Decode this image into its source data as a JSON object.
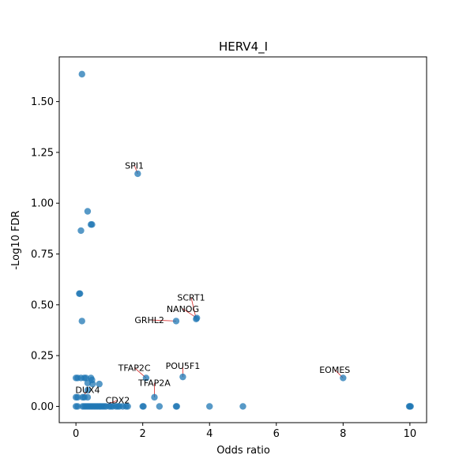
{
  "chart_data": {
    "type": "scatter",
    "title": "HERV4_I",
    "xlabel": "Odds ratio",
    "ylabel": "-Log10 FDR",
    "xlim": [
      -0.5,
      10.5
    ],
    "ylim": [
      -0.08,
      1.72
    ],
    "xticks": [
      0,
      2,
      4,
      6,
      8,
      10
    ],
    "yticks": [
      0.0,
      0.25,
      0.5,
      0.75,
      1.0,
      1.25,
      1.5
    ],
    "xtick_labels": [
      "0",
      "2",
      "4",
      "6",
      "8",
      "10"
    ],
    "ytick_labels": [
      "0.00",
      "0.25",
      "0.50",
      "0.75",
      "1.00",
      "1.25",
      "1.50"
    ],
    "grid": false,
    "point_color": "#1f77b4",
    "point_alpha": 0.75,
    "leader_color": "#d62728",
    "points": [
      [
        0.18,
        1.635
      ],
      [
        1.85,
        1.145
      ],
      [
        0.35,
        0.96
      ],
      [
        0.45,
        0.895
      ],
      [
        0.48,
        0.895
      ],
      [
        0.15,
        0.865
      ],
      [
        0.1,
        0.555
      ],
      [
        0.12,
        0.555
      ],
      [
        0.18,
        0.42
      ],
      [
        3.0,
        0.42
      ],
      [
        3.6,
        0.43
      ],
      [
        3.62,
        0.435
      ],
      [
        3.2,
        0.145
      ],
      [
        8.0,
        0.14
      ],
      [
        2.1,
        0.14
      ],
      [
        2.35,
        0.045
      ],
      [
        0.0,
        0.14
      ],
      [
        0.05,
        0.14
      ],
      [
        0.15,
        0.14
      ],
      [
        0.25,
        0.14
      ],
      [
        0.3,
        0.14
      ],
      [
        0.45,
        0.14
      ],
      [
        0.48,
        0.13
      ],
      [
        0.35,
        0.115
      ],
      [
        0.5,
        0.11
      ],
      [
        0.7,
        0.11
      ],
      [
        0.35,
        0.08
      ],
      [
        0.0,
        0.045
      ],
      [
        0.05,
        0.045
      ],
      [
        0.2,
        0.045
      ],
      [
        0.25,
        0.045
      ],
      [
        0.35,
        0.045
      ],
      [
        0.0,
        0.0
      ],
      [
        0.05,
        0.0
      ],
      [
        0.2,
        0.0
      ],
      [
        0.25,
        0.0
      ],
      [
        0.3,
        0.0
      ],
      [
        0.35,
        0.0
      ],
      [
        0.4,
        0.0
      ],
      [
        0.45,
        0.0
      ],
      [
        0.5,
        0.0
      ],
      [
        0.55,
        0.0
      ],
      [
        0.6,
        0.0
      ],
      [
        0.65,
        0.0
      ],
      [
        0.7,
        0.0
      ],
      [
        0.75,
        0.0
      ],
      [
        0.8,
        0.0
      ],
      [
        0.85,
        0.0
      ],
      [
        0.9,
        0.0
      ],
      [
        1.0,
        0.0
      ],
      [
        1.05,
        0.0
      ],
      [
        1.1,
        0.0
      ],
      [
        1.2,
        0.0
      ],
      [
        1.25,
        0.0
      ],
      [
        1.3,
        0.0
      ],
      [
        1.4,
        0.0
      ],
      [
        1.5,
        0.0
      ],
      [
        1.55,
        0.0
      ],
      [
        2.0,
        0.0
      ],
      [
        2.02,
        0.0
      ],
      [
        2.5,
        0.0
      ],
      [
        3.0,
        0.0
      ],
      [
        3.02,
        0.0
      ],
      [
        4.0,
        0.0
      ],
      [
        5.0,
        0.0
      ],
      [
        10.0,
        0.0
      ],
      [
        9.98,
        0.0
      ],
      [
        10.02,
        0.0
      ]
    ],
    "annotations": [
      {
        "text": "SPI1",
        "x": 1.85,
        "y": 1.145,
        "tx": 1.75,
        "ty": 1.17
      },
      {
        "text": "SCRT1",
        "x": 3.6,
        "y": 0.43,
        "tx": 3.45,
        "ty": 0.52
      },
      {
        "text": "NANOG",
        "x": 3.62,
        "y": 0.435,
        "tx": 3.2,
        "ty": 0.465
      },
      {
        "text": "GRHL2",
        "x": 3.0,
        "y": 0.42,
        "tx": 2.2,
        "ty": 0.41
      },
      {
        "text": "TFAP2C",
        "x": 2.1,
        "y": 0.14,
        "tx": 1.75,
        "ty": 0.175
      },
      {
        "text": "POU5F1",
        "x": 3.2,
        "y": 0.145,
        "tx": 3.2,
        "ty": 0.185
      },
      {
        "text": "EOMES",
        "x": 8.0,
        "y": 0.14,
        "tx": 7.75,
        "ty": 0.165
      },
      {
        "text": "TFAP2A",
        "x": 2.35,
        "y": 0.045,
        "tx": 2.35,
        "ty": 0.1
      },
      {
        "text": "DUX4",
        "x": 0.2,
        "y": 0.045,
        "tx": 0.35,
        "ty": 0.065
      },
      {
        "text": "CDX2",
        "x": 0.8,
        "y": 0.0,
        "tx": 1.25,
        "ty": 0.015
      }
    ]
  }
}
